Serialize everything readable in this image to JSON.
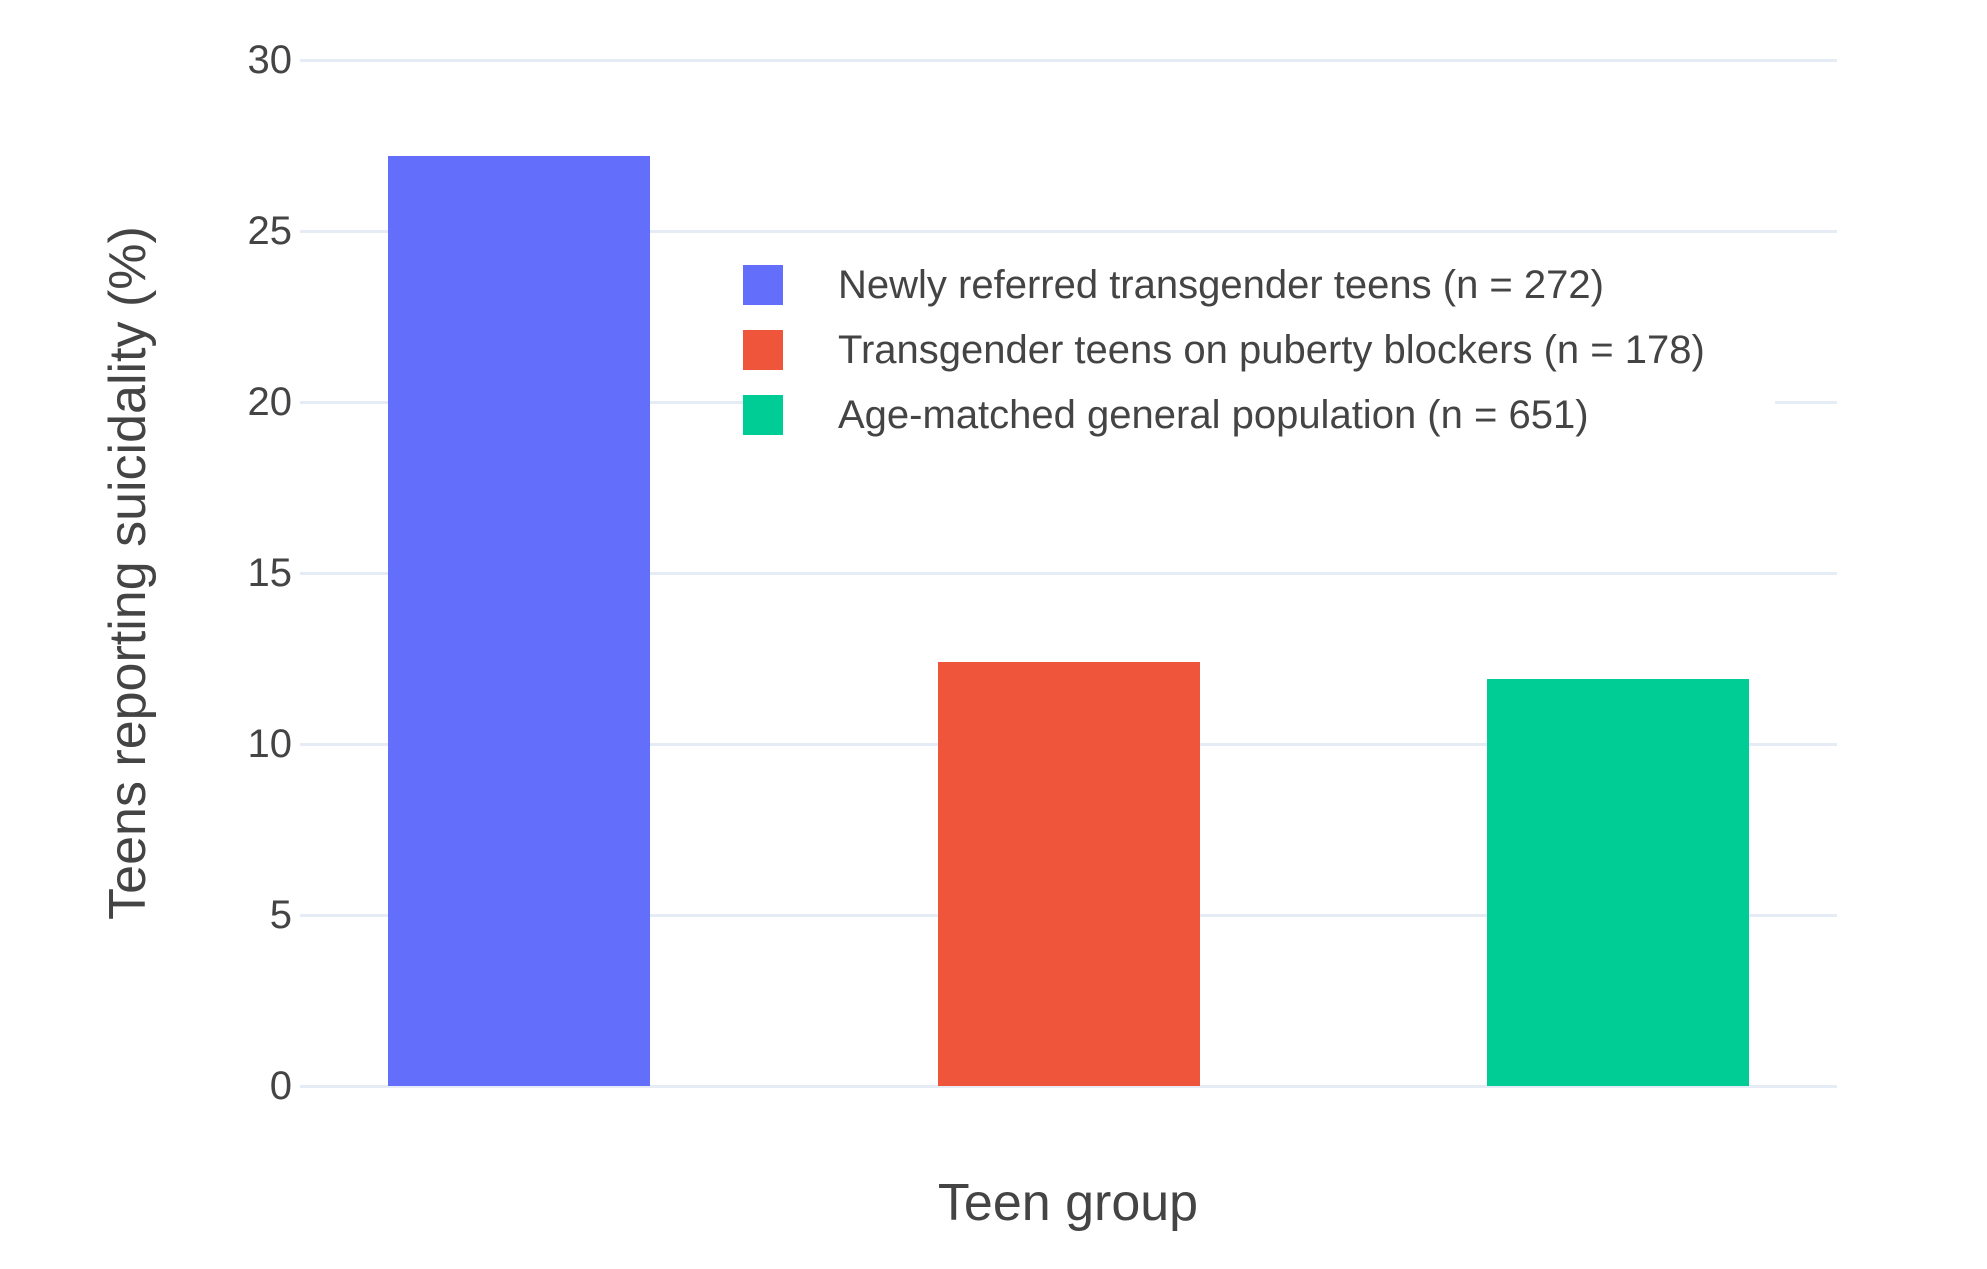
{
  "figure": {
    "background": "#ffffff",
    "text_color": "#444444",
    "grid_color": "#E5ECF6"
  },
  "chart_data": {
    "type": "bar",
    "title": "",
    "xlabel": "Teen group",
    "ylabel": "Teens reporting suicidality (%)",
    "ylim": [
      0,
      30
    ],
    "yticks": [
      0,
      5,
      10,
      15,
      20,
      25,
      30
    ],
    "grid": true,
    "legend_position": "inside-top-center",
    "categories": [
      "Newly referred transgender teens",
      "Transgender teens on puberty blockers",
      "Age-matched general population"
    ],
    "series": [
      {
        "name": "Newly referred transgender teens (n = 272)",
        "value": 27.2,
        "color": "#636EFA"
      },
      {
        "name": "Transgender teens on puberty blockers (n = 178)",
        "value": 12.4,
        "color": "#EF553B"
      },
      {
        "name": "Age-matched general population (n = 651)",
        "value": 11.9,
        "color": "#00CC96"
      }
    ]
  }
}
